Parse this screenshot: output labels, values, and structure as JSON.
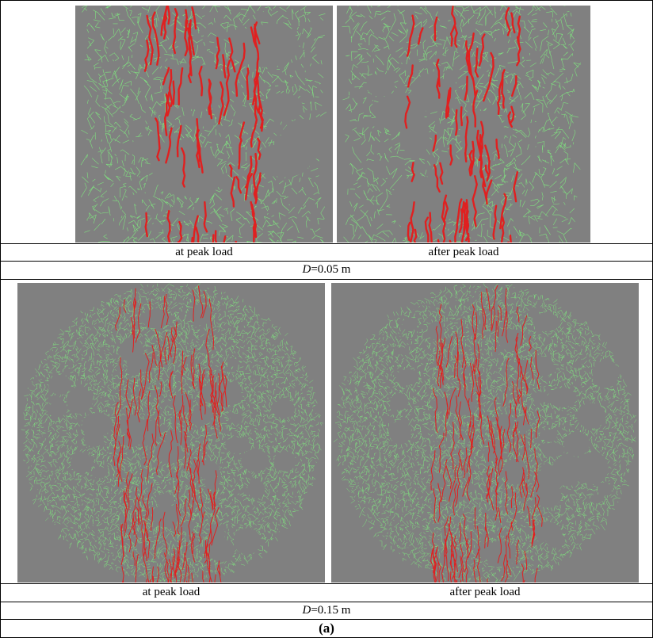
{
  "figure": {
    "rows": [
      {
        "captions": [
          "at peak load",
          "after peak load"
        ],
        "dimension": {
          "symbol": "D",
          "value": "=0.05 m"
        }
      },
      {
        "captions": [
          "at peak load",
          "after peak load"
        ],
        "dimension": {
          "symbol": "D",
          "value": "=0.15 m"
        }
      }
    ],
    "label": "(a)"
  },
  "colors": {
    "background": "#808080",
    "mesh": "#7fe07f",
    "cracks": "#e02020"
  }
}
